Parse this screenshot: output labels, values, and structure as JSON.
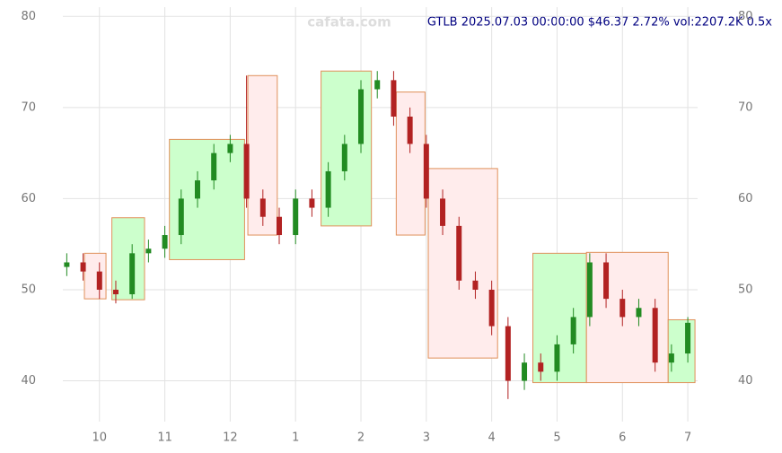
{
  "chart_data": {
    "type": "candlestick",
    "title": "GTLB 2025.07.03 00:00:00 $46.37 2.72% vol:2207.2K 0.5x",
    "watermark": "cafata.com",
    "x": [
      9.5,
      9.75,
      10.0,
      10.25,
      10.5,
      10.75,
      11.0,
      11.25,
      11.5,
      11.75,
      12.0,
      12.25,
      12.5,
      12.75,
      13.0,
      13.25,
      13.5,
      13.75,
      14.0,
      14.25,
      14.5,
      14.75,
      15.0,
      15.25,
      15.5,
      15.75,
      16.0,
      16.25,
      16.5,
      16.75,
      17.0,
      17.25,
      17.5,
      17.75,
      18.0,
      18.25,
      18.5,
      18.75,
      19.0
    ],
    "open": [
      52.5,
      53,
      52,
      50,
      49.5,
      54,
      54.5,
      56,
      60,
      62,
      65,
      66,
      60,
      58,
      56,
      60,
      59,
      63,
      66,
      72,
      73,
      69,
      66,
      60,
      57,
      51,
      50,
      46,
      40,
      42,
      41,
      44,
      47,
      53,
      49,
      47,
      48,
      42,
      43
    ],
    "high": [
      54,
      54,
      53,
      51,
      55,
      55.5,
      57,
      61,
      63,
      66,
      67,
      73.5,
      61,
      59,
      61,
      61,
      64,
      67,
      73,
      74,
      74,
      70,
      67,
      61,
      58,
      52,
      51,
      47,
      43,
      43,
      45,
      48,
      54,
      54,
      50,
      49,
      49,
      44,
      47
    ],
    "low": [
      51.5,
      51,
      49,
      48.5,
      49,
      53,
      53.5,
      55,
      59,
      61,
      64,
      59,
      57,
      55,
      55,
      58,
      58,
      62,
      65,
      71,
      68,
      65,
      59,
      56,
      50,
      49,
      45,
      38,
      39,
      40,
      40,
      43,
      46,
      48,
      46,
      46,
      41,
      41,
      42
    ],
    "close": [
      53,
      52,
      50,
      49.5,
      54,
      54.5,
      56,
      60,
      62,
      65,
      66,
      60,
      58,
      56,
      60,
      59,
      63,
      66,
      72,
      73,
      69,
      66,
      60,
      57,
      51,
      50,
      46,
      40,
      42,
      41,
      44,
      47,
      53,
      49,
      47,
      48,
      42,
      43,
      46.37
    ],
    "up_color": "#228b22",
    "down_color": "#b22222",
    "boxes": [
      {
        "x": [
          9.77,
          10.1
        ],
        "y": [
          49,
          54
        ],
        "kind": "down"
      },
      {
        "x": [
          10.19,
          10.69
        ],
        "y": [
          48.9,
          57.9
        ],
        "kind": "up"
      },
      {
        "x": [
          11.07,
          12.22
        ],
        "y": [
          53.3,
          66.5
        ],
        "kind": "up"
      },
      {
        "x": [
          12.27,
          12.72
        ],
        "y": [
          56,
          73.5
        ],
        "kind": "down"
      },
      {
        "x": [
          13.39,
          14.16
        ],
        "y": [
          57,
          74
        ],
        "kind": "up"
      },
      {
        "x": [
          14.54,
          14.98
        ],
        "y": [
          56,
          71.7
        ],
        "kind": "down"
      },
      {
        "x": [
          15.03,
          16.09
        ],
        "y": [
          42.5,
          63.3
        ],
        "kind": "down"
      },
      {
        "x": [
          16.63,
          17.45
        ],
        "y": [
          39.8,
          54
        ],
        "kind": "up"
      },
      {
        "x": [
          17.45,
          18.7
        ],
        "y": [
          39.8,
          54.1
        ],
        "kind": "down"
      },
      {
        "x": [
          18.7,
          19.11
        ],
        "y": [
          39.8,
          46.7
        ],
        "kind": "up"
      }
    ],
    "xlim": [
      9.44,
      19.15
    ],
    "xticks": [
      {
        "value": 10,
        "label": "10"
      },
      {
        "value": 11,
        "label": "11"
      },
      {
        "value": 12,
        "label": "12"
      },
      {
        "value": 13,
        "label": "1"
      },
      {
        "value": 14,
        "label": "2"
      },
      {
        "value": 15,
        "label": "3"
      },
      {
        "value": 16,
        "label": "4"
      },
      {
        "value": 17,
        "label": "5"
      },
      {
        "value": 18,
        "label": "6"
      },
      {
        "value": 19,
        "label": "7"
      }
    ],
    "ylim": [
      37,
      81.8
    ],
    "yticks": [
      40,
      50,
      60,
      70,
      80
    ],
    "grid": true
  }
}
